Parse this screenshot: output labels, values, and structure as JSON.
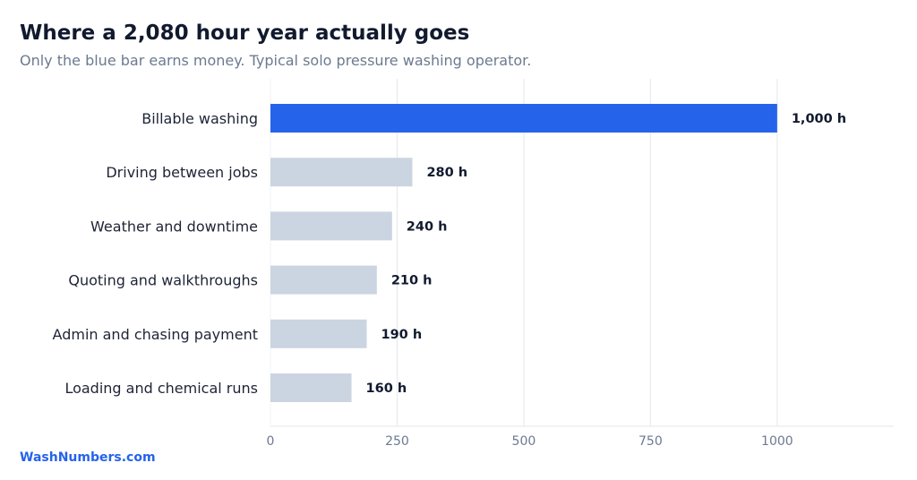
{
  "chart_data": {
    "type": "bar",
    "orientation": "horizontal",
    "title": "Where a 2,080 hour year actually goes",
    "subtitle": "Only the blue bar earns money. Typical solo pressure washing operator.",
    "categories": [
      "Billable washing",
      "Driving between jobs",
      "Weather and downtime",
      "Quoting and walkthroughs",
      "Admin and chasing payment",
      "Loading and chemical runs"
    ],
    "values": [
      1000,
      280,
      240,
      210,
      190,
      160
    ],
    "value_labels": [
      "1,000 h",
      "280 h",
      "240 h",
      "210 h",
      "190 h",
      "160 h"
    ],
    "bar_colors": [
      "#2563eb",
      "#cbd5e1",
      "#cbd5e1",
      "#cbd5e1",
      "#cbd5e1",
      "#cbd5e1"
    ],
    "xticks": [
      0,
      250,
      500,
      750,
      1000
    ],
    "xtick_labels": [
      "0",
      "250",
      "500",
      "750",
      "1000"
    ],
    "xlim": [
      0,
      1230
    ],
    "xlabel": "",
    "ylabel": "",
    "grid": "vertical",
    "legend": "none"
  },
  "footer": {
    "brand": "WashNumbers.com"
  },
  "colors": {
    "highlight": "#2563eb",
    "muted": "#cbd5e1",
    "grid": "#e5e7eb"
  }
}
